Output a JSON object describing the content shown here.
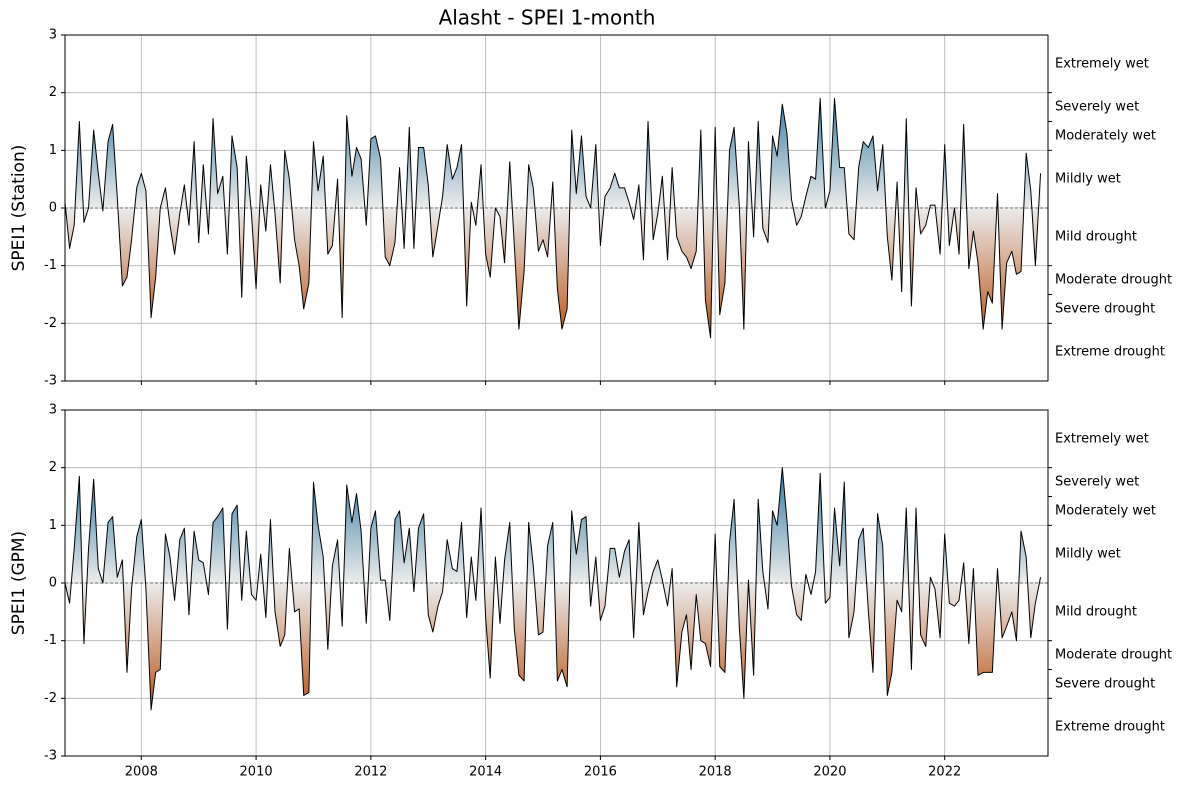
{
  "title": "Alasht - SPEI 1-month",
  "chart_data": [
    {
      "type": "line",
      "ylabel": "SPEI1 (Station)",
      "x": [
        2006.67,
        2006.75,
        2006.83,
        2006.92,
        2007,
        2007.08,
        2007.17,
        2007.25,
        2007.33,
        2007.42,
        2007.5,
        2007.58,
        2007.67,
        2007.75,
        2007.83,
        2007.92,
        2008,
        2008.08,
        2008.17,
        2008.25,
        2008.33,
        2008.42,
        2008.5,
        2008.58,
        2008.67,
        2008.75,
        2008.83,
        2008.92,
        2009,
        2009.08,
        2009.17,
        2009.25,
        2009.33,
        2009.42,
        2009.5,
        2009.58,
        2009.67,
        2009.75,
        2009.83,
        2009.92,
        2010,
        2010.08,
        2010.17,
        2010.25,
        2010.33,
        2010.42,
        2010.5,
        2010.58,
        2010.67,
        2010.75,
        2010.83,
        2010.92,
        2011,
        2011.08,
        2011.17,
        2011.25,
        2011.33,
        2011.42,
        2011.5,
        2011.58,
        2011.67,
        2011.75,
        2011.83,
        2011.92,
        2012,
        2012.08,
        2012.17,
        2012.25,
        2012.33,
        2012.42,
        2012.5,
        2012.58,
        2012.67,
        2012.75,
        2012.83,
        2012.92,
        2013,
        2013.08,
        2013.17,
        2013.25,
        2013.33,
        2013.42,
        2013.5,
        2013.58,
        2013.67,
        2013.75,
        2013.83,
        2013.92,
        2014,
        2014.08,
        2014.17,
        2014.25,
        2014.33,
        2014.42,
        2014.5,
        2014.58,
        2014.67,
        2014.75,
        2014.83,
        2014.92,
        2015,
        2015.08,
        2015.17,
        2015.25,
        2015.33,
        2015.42,
        2015.5,
        2015.58,
        2015.67,
        2015.75,
        2015.83,
        2015.92,
        2016,
        2016.08,
        2016.17,
        2016.25,
        2016.33,
        2016.42,
        2016.5,
        2016.58,
        2016.67,
        2016.75,
        2016.83,
        2016.92,
        2017,
        2017.08,
        2017.17,
        2017.25,
        2017.33,
        2017.42,
        2017.5,
        2017.58,
        2017.67,
        2017.75,
        2017.83,
        2017.92,
        2018,
        2018.08,
        2018.17,
        2018.25,
        2018.33,
        2018.42,
        2018.5,
        2018.58,
        2018.67,
        2018.75,
        2018.83,
        2018.92,
        2019,
        2019.08,
        2019.17,
        2019.25,
        2019.33,
        2019.42,
        2019.5,
        2019.58,
        2019.67,
        2019.75,
        2019.83,
        2019.92,
        2020,
        2020.08,
        2020.17,
        2020.25,
        2020.33,
        2020.42,
        2020.5,
        2020.58,
        2020.67,
        2020.75,
        2020.83,
        2020.92,
        2021,
        2021.08,
        2021.17,
        2021.25,
        2021.33,
        2021.42,
        2021.5,
        2021.58,
        2021.67,
        2021.75,
        2021.83,
        2021.92,
        2022,
        2022.08,
        2022.17,
        2022.25,
        2022.33,
        2022.42,
        2022.5,
        2022.58,
        2022.67,
        2022.75,
        2022.83,
        2022.92,
        2023,
        2023.08,
        2023.17,
        2023.25,
        2023.33,
        2023.42,
        2023.5,
        2023.58,
        2023.67
      ],
      "values": [
        0.1,
        -0.7,
        -0.3,
        1.5,
        -0.25,
        0,
        1.35,
        0.6,
        -0.05,
        1.15,
        1.45,
        0.2,
        -1.35,
        -1.2,
        -0.55,
        0.35,
        0.6,
        0.3,
        -1.9,
        -1.2,
        0,
        0.35,
        -0.3,
        -0.8,
        -0.1,
        0.4,
        -0.3,
        1.15,
        -0.6,
        0.75,
        -0.45,
        1.55,
        0.25,
        0.55,
        -0.8,
        1.25,
        0.7,
        -1.55,
        0.9,
        -0.1,
        -1.4,
        0.4,
        -0.4,
        0.75,
        -0.1,
        -1.3,
        1.0,
        0.5,
        -0.55,
        -1.0,
        -1.75,
        -1.3,
        1.15,
        0.3,
        0.9,
        -0.8,
        -0.65,
        0.5,
        -1.9,
        1.6,
        0.55,
        1.05,
        0.85,
        -0.3,
        1.2,
        1.25,
        0.85,
        -0.85,
        -1.0,
        -0.6,
        0.7,
        -0.7,
        1.4,
        -0.7,
        1.05,
        1.05,
        0.4,
        -0.85,
        -0.3,
        0.2,
        1.1,
        0.5,
        0.7,
        1.1,
        -1.7,
        0.1,
        -0.3,
        0.75,
        -0.8,
        -1.2,
        0,
        -0.15,
        -0.95,
        0.8,
        -0.65,
        -2.1,
        -1.1,
        0.75,
        0.35,
        -0.75,
        -0.55,
        -0.85,
        0.45,
        -1.4,
        -2.1,
        -1.75,
        1.35,
        0.25,
        1.25,
        0.2,
        0,
        1.1,
        -0.65,
        0.2,
        0.35,
        0.6,
        0.35,
        0.35,
        0.1,
        -0.2,
        0.4,
        -0.9,
        1.5,
        -0.55,
        -0.1,
        0.55,
        -0.9,
        0.7,
        -0.5,
        -0.75,
        -0.85,
        -1.05,
        -0.75,
        1.35,
        -1.6,
        -2.25,
        1.4,
        -1.85,
        -1.3,
        1.0,
        1.4,
        0.05,
        -2.1,
        1.15,
        -0.5,
        1.5,
        -0.35,
        -0.6,
        1.25,
        0.9,
        1.8,
        1.3,
        0.15,
        -0.3,
        -0.15,
        0.2,
        0.55,
        0.5,
        1.9,
        0,
        0.3,
        1.9,
        0.7,
        0.7,
        -0.45,
        -0.55,
        0.7,
        1.15,
        1.05,
        1.25,
        0.3,
        1.1,
        -0.5,
        -1.25,
        0.45,
        -1.45,
        1.55,
        -1.7,
        0.35,
        -0.45,
        -0.3,
        0.05,
        0.05,
        -0.8,
        1.1,
        -0.65,
        0,
        -0.8,
        1.45,
        -1.05,
        -0.4,
        -0.95,
        -2.1,
        -1.45,
        -1.65,
        0.25,
        -2.1,
        -0.95,
        -0.75,
        -1.15,
        -1.1,
        0.95,
        0.3,
        -1.0,
        0.6
      ],
      "color": "#000000",
      "fill_colors": {
        "wet": "#1f6d9c",
        "neutral": "#ececec",
        "dry": "#b9541a"
      },
      "xlim": [
        2006.67,
        2023.8
      ],
      "xticks": [
        2008,
        2010,
        2012,
        2014,
        2016,
        2018,
        2020,
        2022
      ],
      "show_xtick_labels": false,
      "ylim": [
        -3,
        3
      ],
      "yticks": [
        -3,
        -2,
        -1,
        0,
        1,
        2,
        3
      ],
      "grid": true,
      "zero_line": true,
      "y2lim": [
        -3,
        3
      ],
      "y2ticks": [
        -2,
        -1.5,
        -1,
        1,
        1.5,
        2
      ],
      "classes": [
        {
          "value": 2.5,
          "label": "Extremely wet"
        },
        {
          "value": 1.75,
          "label": "Severely wet"
        },
        {
          "value": 1.25,
          "label": "Moderately wet"
        },
        {
          "value": 0.5,
          "label": "Mildly wet"
        },
        {
          "value": -0.5,
          "label": "Mild drought"
        },
        {
          "value": -1.25,
          "label": "Moderate drought"
        },
        {
          "value": -1.75,
          "label": "Severe drought"
        },
        {
          "value": -2.5,
          "label": "Extreme drought"
        }
      ]
    },
    {
      "type": "line",
      "ylabel": "SPEI1 (GPM)",
      "x": [
        2006.67,
        2006.75,
        2006.83,
        2006.92,
        2007,
        2007.08,
        2007.17,
        2007.25,
        2007.33,
        2007.42,
        2007.5,
        2007.58,
        2007.67,
        2007.75,
        2007.83,
        2007.92,
        2008,
        2008.08,
        2008.17,
        2008.25,
        2008.33,
        2008.42,
        2008.5,
        2008.58,
        2008.67,
        2008.75,
        2008.83,
        2008.92,
        2009,
        2009.08,
        2009.17,
        2009.25,
        2009.33,
        2009.42,
        2009.5,
        2009.58,
        2009.67,
        2009.75,
        2009.83,
        2009.92,
        2010,
        2010.08,
        2010.17,
        2010.25,
        2010.33,
        2010.42,
        2010.5,
        2010.58,
        2010.67,
        2010.75,
        2010.83,
        2010.92,
        2011,
        2011.08,
        2011.17,
        2011.25,
        2011.33,
        2011.42,
        2011.5,
        2011.58,
        2011.67,
        2011.75,
        2011.83,
        2011.92,
        2012,
        2012.08,
        2012.17,
        2012.25,
        2012.33,
        2012.42,
        2012.5,
        2012.58,
        2012.67,
        2012.75,
        2012.83,
        2012.92,
        2013,
        2013.08,
        2013.17,
        2013.25,
        2013.33,
        2013.42,
        2013.5,
        2013.58,
        2013.67,
        2013.75,
        2013.83,
        2013.92,
        2014,
        2014.08,
        2014.17,
        2014.25,
        2014.33,
        2014.42,
        2014.5,
        2014.58,
        2014.67,
        2014.75,
        2014.83,
        2014.92,
        2015,
        2015.08,
        2015.17,
        2015.25,
        2015.33,
        2015.42,
        2015.5,
        2015.58,
        2015.67,
        2015.75,
        2015.83,
        2015.92,
        2016,
        2016.08,
        2016.17,
        2016.25,
        2016.33,
        2016.42,
        2016.5,
        2016.58,
        2016.67,
        2016.75,
        2016.83,
        2016.92,
        2017,
        2017.08,
        2017.17,
        2017.25,
        2017.33,
        2017.42,
        2017.5,
        2017.58,
        2017.67,
        2017.75,
        2017.83,
        2017.92,
        2018,
        2018.08,
        2018.17,
        2018.25,
        2018.33,
        2018.42,
        2018.5,
        2018.58,
        2018.67,
        2018.75,
        2018.83,
        2018.92,
        2019,
        2019.08,
        2019.17,
        2019.25,
        2019.33,
        2019.42,
        2019.5,
        2019.58,
        2019.67,
        2019.75,
        2019.83,
        2019.92,
        2020,
        2020.08,
        2020.17,
        2020.25,
        2020.33,
        2020.42,
        2020.5,
        2020.58,
        2020.67,
        2020.75,
        2020.83,
        2020.92,
        2021,
        2021.08,
        2021.17,
        2021.25,
        2021.33,
        2021.42,
        2021.5,
        2021.58,
        2021.67,
        2021.75,
        2021.83,
        2021.92,
        2022,
        2022.08,
        2022.17,
        2022.25,
        2022.33,
        2022.42,
        2022.5,
        2022.58,
        2022.67,
        2022.75,
        2022.83,
        2022.92,
        2023,
        2023.08,
        2023.17,
        2023.25,
        2023.33,
        2023.42,
        2023.5,
        2023.58,
        2023.67
      ],
      "values": [
        0,
        -0.35,
        0.6,
        1.85,
        -1.05,
        0.6,
        1.8,
        0.25,
        0,
        1.05,
        1.15,
        0.1,
        0.4,
        -1.55,
        -0.1,
        0.8,
        1.1,
        -0.1,
        -2.2,
        -1.55,
        -1.5,
        0.85,
        0.45,
        -0.3,
        0.75,
        0.95,
        -0.55,
        0.9,
        0.4,
        0.35,
        -0.2,
        1.05,
        1.15,
        1.3,
        -0.8,
        1.2,
        1.35,
        -0.3,
        0.9,
        -0.2,
        -0.3,
        0.5,
        -0.6,
        1.1,
        -0.5,
        -1.1,
        -0.9,
        0.6,
        -0.5,
        -0.45,
        -1.95,
        -1.9,
        1.75,
        1.0,
        0.45,
        -1.15,
        0.3,
        0.75,
        -0.75,
        1.7,
        1.05,
        1.55,
        0.9,
        -0.7,
        0.95,
        1.25,
        0.05,
        0.05,
        -0.65,
        1.1,
        1.25,
        0.35,
        0.95,
        -0.15,
        0.95,
        1.2,
        -0.55,
        -0.85,
        -0.4,
        -0.15,
        0.75,
        0.25,
        0.2,
        1.05,
        -0.6,
        0.45,
        -0.3,
        1.3,
        -0.6,
        -1.65,
        0.45,
        -0.7,
        0.4,
        1.05,
        -0.8,
        -1.6,
        -1.7,
        1.05,
        0.3,
        -0.9,
        -0.85,
        0.65,
        1.05,
        -1.7,
        -1.5,
        -1.8,
        1.25,
        0.5,
        1.1,
        1.15,
        -0.4,
        0.45,
        -0.65,
        -0.4,
        0.6,
        0.6,
        0.1,
        0.55,
        0.75,
        -0.95,
        1.05,
        -0.55,
        -0.15,
        0.2,
        0.4,
        0.05,
        -0.4,
        0.25,
        -1.8,
        -0.85,
        -0.55,
        -1.5,
        -0.2,
        -1.0,
        -1.05,
        -1.45,
        0.85,
        -1.45,
        -1.55,
        0.7,
        1.45,
        -0.75,
        -2.0,
        0.05,
        -1.6,
        1.45,
        0.2,
        -0.45,
        1.25,
        1.0,
        2.0,
        1.1,
        -0.05,
        -0.55,
        -0.65,
        0.15,
        -0.2,
        0.2,
        1.9,
        -0.35,
        -0.25,
        1.3,
        0.3,
        1.75,
        -0.95,
        -0.5,
        0.75,
        0.95,
        -0.5,
        -1.55,
        1.2,
        0.65,
        -1.95,
        -1.55,
        -0.3,
        -0.5,
        1.3,
        -1.5,
        1.3,
        -0.9,
        -1.1,
        0.1,
        -0.1,
        -0.95,
        0.85,
        -0.35,
        -0.4,
        -0.3,
        0.35,
        -1.05,
        0.25,
        -1.6,
        -1.55,
        -1.55,
        -1.55,
        0.25,
        -0.95,
        -0.75,
        -0.5,
        -1.0,
        0.9,
        0.45,
        -0.95,
        -0.35,
        0.1
      ],
      "color": "#000000",
      "fill_colors": {
        "wet": "#1f6d9c",
        "neutral": "#ececec",
        "dry": "#b9541a"
      },
      "xlim": [
        2006.67,
        2023.8
      ],
      "xticks": [
        2008,
        2010,
        2012,
        2014,
        2016,
        2018,
        2020,
        2022
      ],
      "show_xtick_labels": true,
      "ylim": [
        -3,
        3
      ],
      "yticks": [
        -3,
        -2,
        -1,
        0,
        1,
        2,
        3
      ],
      "grid": true,
      "zero_line": true,
      "y2lim": [
        -3,
        3
      ],
      "y2ticks": [
        -2,
        -1.5,
        -1,
        1,
        1.5,
        2
      ],
      "classes": [
        {
          "value": 2.5,
          "label": "Extremely wet"
        },
        {
          "value": 1.75,
          "label": "Severely wet"
        },
        {
          "value": 1.25,
          "label": "Moderately wet"
        },
        {
          "value": 0.5,
          "label": "Mildly wet"
        },
        {
          "value": -0.5,
          "label": "Mild drought"
        },
        {
          "value": -1.25,
          "label": "Moderate drought"
        },
        {
          "value": -1.75,
          "label": "Severe drought"
        },
        {
          "value": -2.5,
          "label": "Extreme drought"
        }
      ]
    }
  ]
}
